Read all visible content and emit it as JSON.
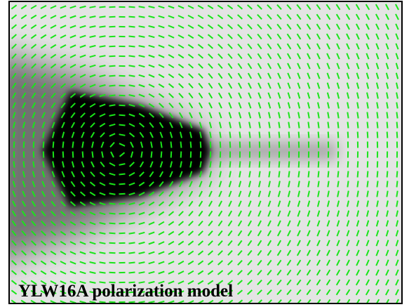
{
  "title": "YLW16A polarization model"
}
